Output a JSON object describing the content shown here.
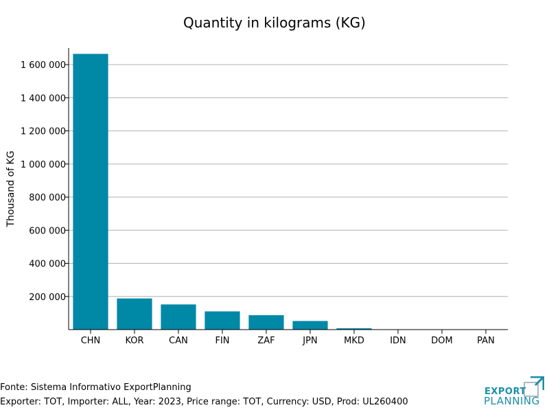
{
  "chart_data": {
    "type": "bar",
    "title": "Quantity in kilograms (KG)",
    "ylabel": "Thousand of KG",
    "xlabel": "",
    "categories": [
      "CHN",
      "KOR",
      "CAN",
      "FIN",
      "ZAF",
      "JPN",
      "MKD",
      "IDN",
      "DOM",
      "PAN"
    ],
    "values": [
      1665000,
      188000,
      152000,
      110000,
      87000,
      52000,
      8000,
      2000,
      1500,
      1000
    ],
    "ylim": [
      0,
      1700000
    ],
    "yticks": [
      200000,
      400000,
      600000,
      800000,
      1000000,
      1200000,
      1400000,
      1600000
    ],
    "ytick_labels": [
      "200 000",
      "400 000",
      "600 000",
      "800 000",
      "1 000 000",
      "1 200 000",
      "1 400 000",
      "1 600 000"
    ],
    "grid": "horizontal",
    "bar_color": "#0089a7",
    "grid_color": "#b0b0b0"
  },
  "footer": {
    "source": "Fonte: Sistema Informativo ExportPlanning",
    "info": "Exporter: TOT, Importer: ALL, Year: 2023, Price range: TOT, Currency: USD, Prod: UL260400"
  },
  "logo": {
    "line1": "EXPORT",
    "line2": "PLANNING",
    "color": "#1a8fa8"
  }
}
